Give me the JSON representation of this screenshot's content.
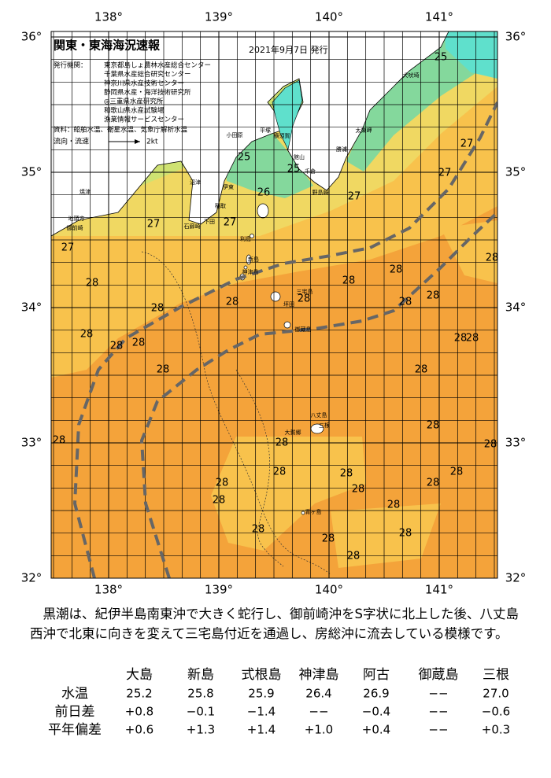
{
  "map": {
    "title": "関東・東海海況速報",
    "date": "2021年9月7日 発行",
    "issuer_label": "発行機関：",
    "issuers": [
      "東京都島しょ農林水産総合センター",
      "千葉県水産総合研究センター",
      "神奈川県水産技術センター",
      "静岡県水産・海洋技術研究所",
      "◎三重県水産研究所",
      "和歌山県水産試験場",
      "漁業情報サービスセンター"
    ],
    "source": "資料：船舶水温、衛星水温、気象庁解析水温",
    "current_legend": "流向・流速",
    "current_speed": "2kt",
    "xticks": [
      {
        "value": 138,
        "label": "138°"
      },
      {
        "value": 139,
        "label": "139°"
      },
      {
        "value": 140,
        "label": "140°"
      },
      {
        "value": 141,
        "label": "141°"
      }
    ],
    "yticks": [
      {
        "value": 36,
        "label": "36°"
      },
      {
        "value": 35,
        "label": "35°"
      },
      {
        "value": 34,
        "label": "34°"
      },
      {
        "value": 33,
        "label": "33°"
      },
      {
        "value": 32,
        "label": "32°"
      }
    ],
    "isotherm_labels": [
      25,
      27,
      27,
      25,
      25,
      26,
      27,
      27,
      27,
      27,
      28,
      28,
      28,
      28,
      28,
      28,
      28,
      28,
      28,
      28,
      28,
      28,
      28,
      28,
      28,
      28,
      28,
      28,
      28,
      28,
      28,
      28,
      28,
      28,
      28,
      28,
      28,
      28,
      28,
      28,
      28,
      28
    ],
    "places": [
      "焼津",
      "地頭方",
      "御前崎",
      "沼津",
      "伊東",
      "小田原",
      "平塚",
      "横須賀",
      "館山",
      "千倉",
      "野島崎",
      "勝浦",
      "太東岬",
      "犬吠埼",
      "稲取",
      "下田",
      "石廊崎",
      "利島",
      "新島",
      "神津島",
      "三宅島",
      "坪田",
      "御蔵島",
      "八丈島",
      "三根",
      "大賀郷",
      "青ヶ島"
    ]
  },
  "description": "黒潮は、紀伊半島南東沖で大きく蛇行し、御前崎沖をS字状に北上した後、八丈島西沖で北東に向きを変えて三宅島付近を通過し、房総沖に流去している模様です。",
  "table": {
    "columns": [
      "大島",
      "新島",
      "式根島",
      "神津島",
      "阿古",
      "御蔵島",
      "三根"
    ],
    "rows": [
      {
        "label": "水温",
        "values": [
          "25.2",
          "25.8",
          "25.9",
          "26.4",
          "26.9",
          "−−",
          "27.0"
        ]
      },
      {
        "label": "前日差",
        "values": [
          "+0.8",
          "−0.1",
          "−1.4",
          "−−",
          "−0.4",
          "−−",
          "−0.6"
        ]
      },
      {
        "label": "平年偏差",
        "values": [
          "+0.6",
          "+1.3",
          "+1.4",
          "+1.0",
          "+0.4",
          "−−",
          "+0.3"
        ]
      }
    ]
  }
}
